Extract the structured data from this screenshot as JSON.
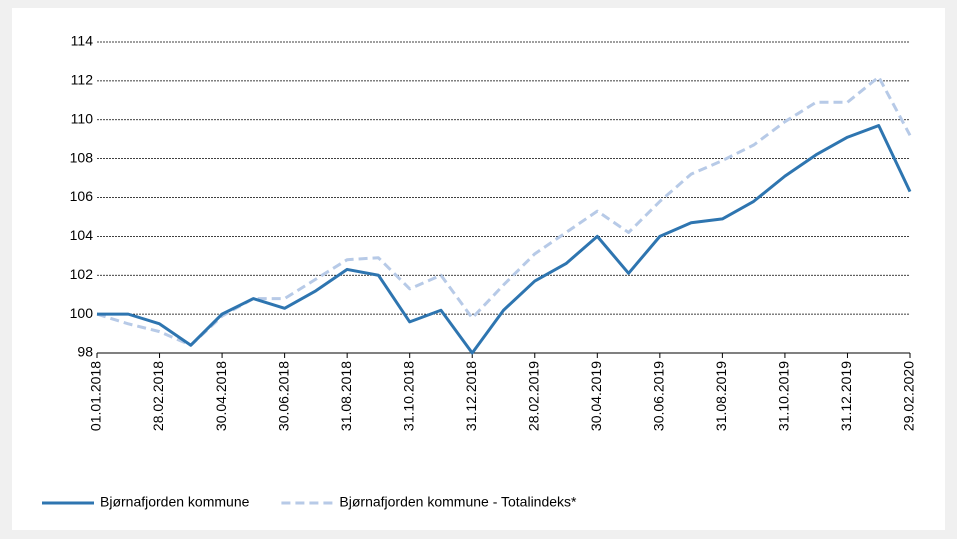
{
  "chart_data": {
    "type": "line",
    "x": [
      "01.01.2018",
      null,
      "28.02.2018",
      null,
      "30.04.2018",
      null,
      "30.06.2018",
      null,
      "31.08.2018",
      null,
      "31.10.2018",
      null,
      "31.12.2018",
      null,
      "28.02.2019",
      null,
      "30.04.2019",
      null,
      "30.06.2019",
      null,
      "31.08.2019",
      null,
      "31.10.2019",
      null,
      "31.12.2019",
      null,
      "29.02.2020"
    ],
    "series": [
      {
        "name": "Bjørnafjorden kommune",
        "color": "#2e75b0",
        "dashed": false,
        "values": [
          100.0,
          100.0,
          99.5,
          98.4,
          100.0,
          100.8,
          100.3,
          101.2,
          102.3,
          102.0,
          99.6,
          100.2,
          98.0,
          100.2,
          101.7,
          102.6,
          104.0,
          102.1,
          104.0,
          104.7,
          104.9,
          105.8,
          107.1,
          108.2,
          109.1,
          109.7,
          106.3
        ]
      },
      {
        "name": "Bjørnafjorden kommune - Totalindeks*",
        "color": "#b7cae7",
        "dashed": true,
        "values": [
          100.0,
          99.5,
          99.1,
          98.4,
          99.9,
          100.8,
          100.8,
          101.8,
          102.8,
          102.9,
          101.3,
          102.0,
          99.8,
          101.5,
          103.1,
          104.2,
          105.3,
          104.2,
          105.8,
          107.2,
          107.9,
          108.7,
          109.9,
          110.9,
          110.9,
          112.2,
          109.2
        ]
      }
    ],
    "ylim": [
      98,
      114
    ],
    "yticks": [
      98,
      100,
      102,
      104,
      106,
      108,
      110,
      112,
      114
    ],
    "grid": true
  }
}
